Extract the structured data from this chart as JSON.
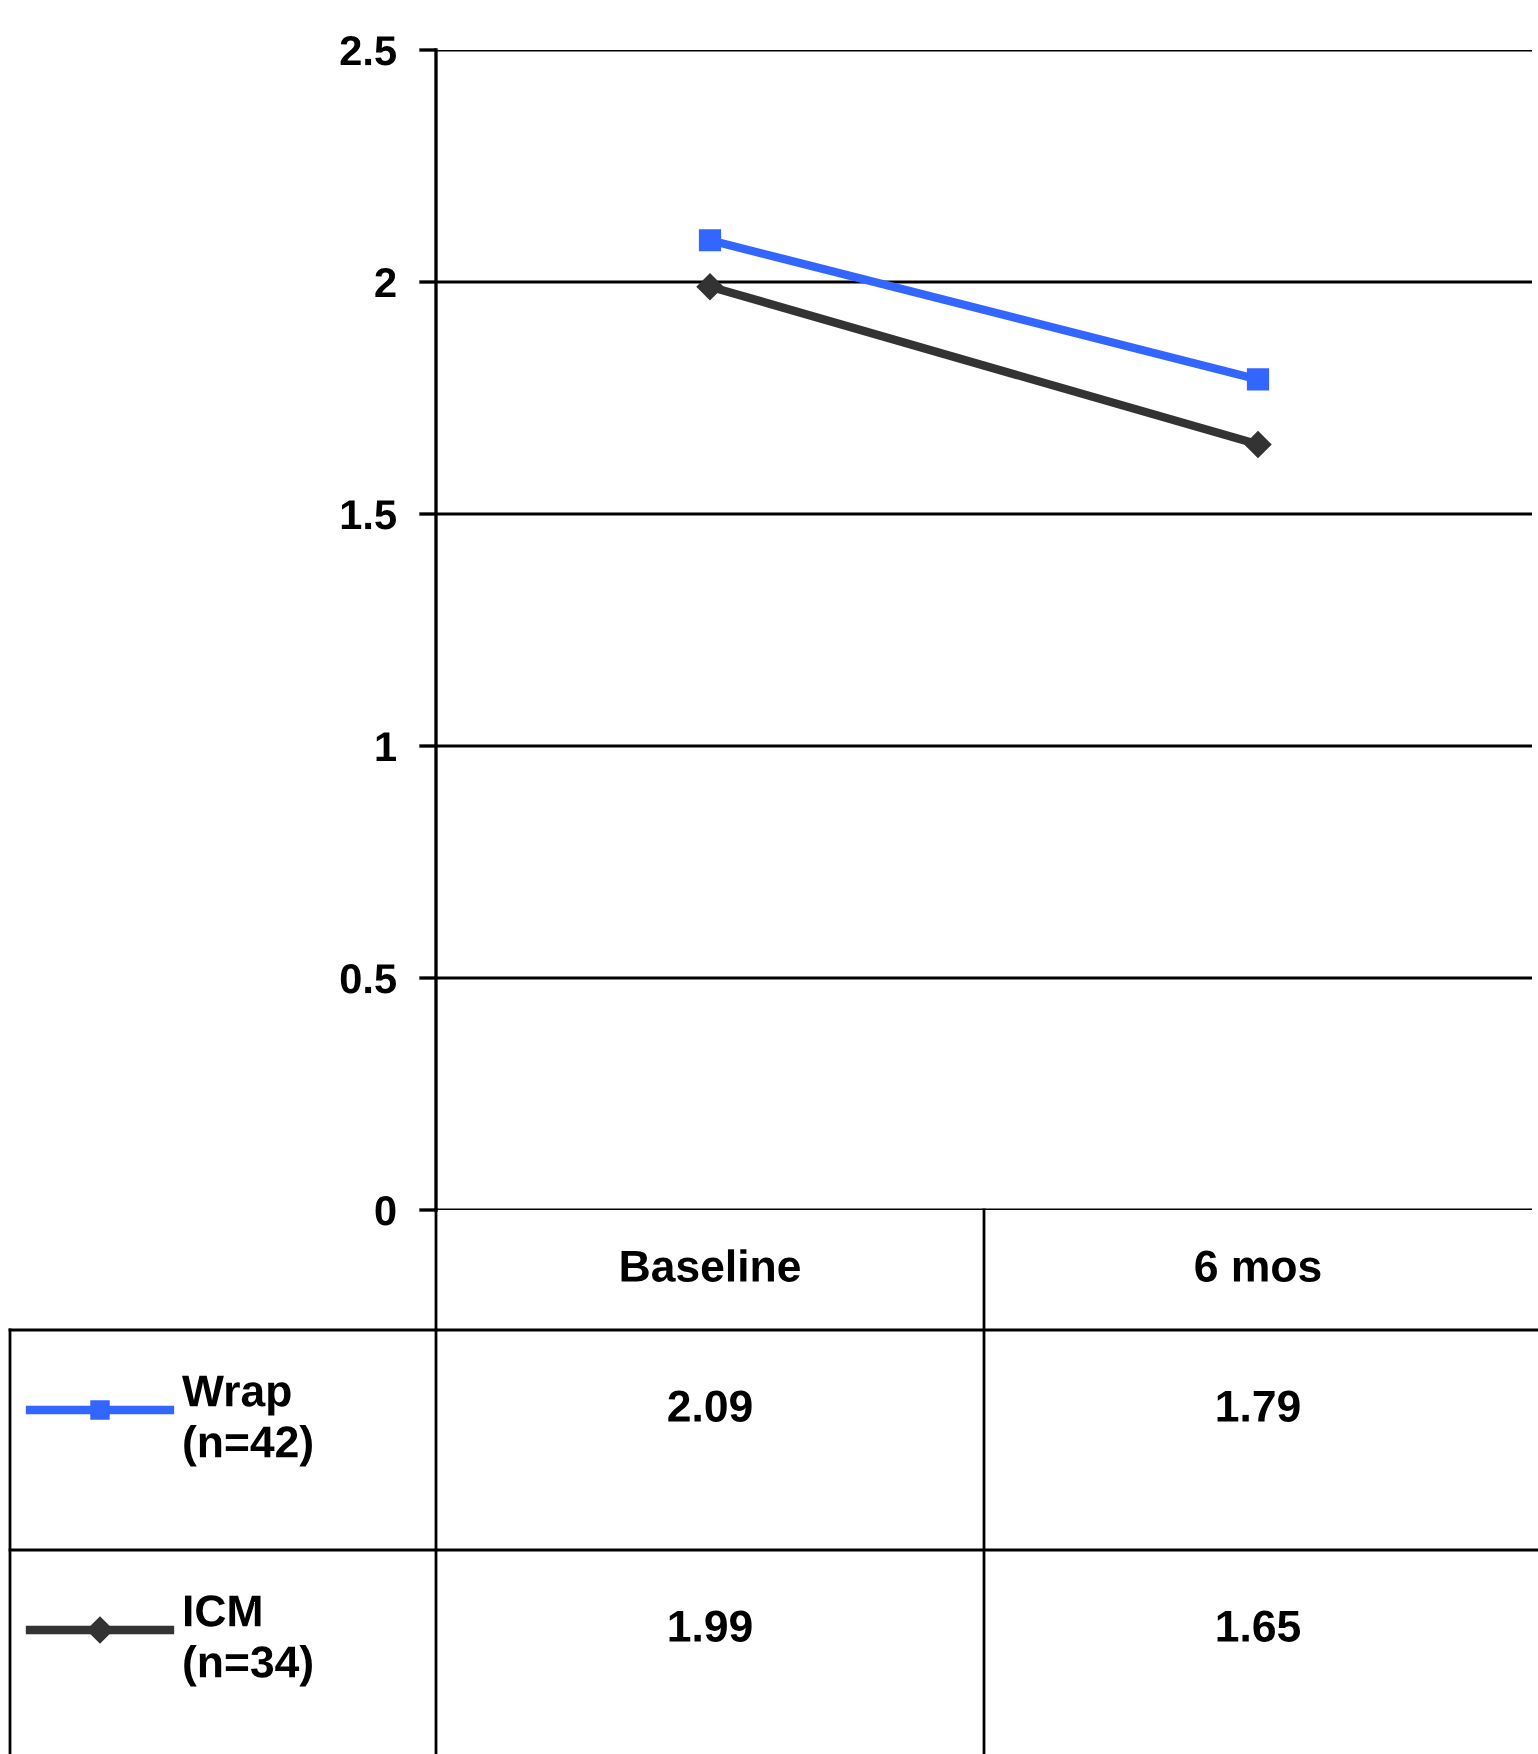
{
  "chart_data": {
    "type": "line",
    "categories": [
      "Baseline",
      "6 mos"
    ],
    "series": [
      {
        "name": "Wrap\n(n=42)",
        "color": "#3366ff",
        "marker": "square",
        "values": [
          2.09,
          1.79
        ]
      },
      {
        "name": "ICM\n(n=34)",
        "color": "#333333",
        "marker": "diamond",
        "values": [
          1.99,
          1.65
        ]
      }
    ],
    "ylim": [
      0,
      2.5
    ],
    "yticks": [
      0,
      0.5,
      1,
      1.5,
      2,
      2.5
    ],
    "grid": "y",
    "data_labels": true,
    "legend": "bottom"
  }
}
